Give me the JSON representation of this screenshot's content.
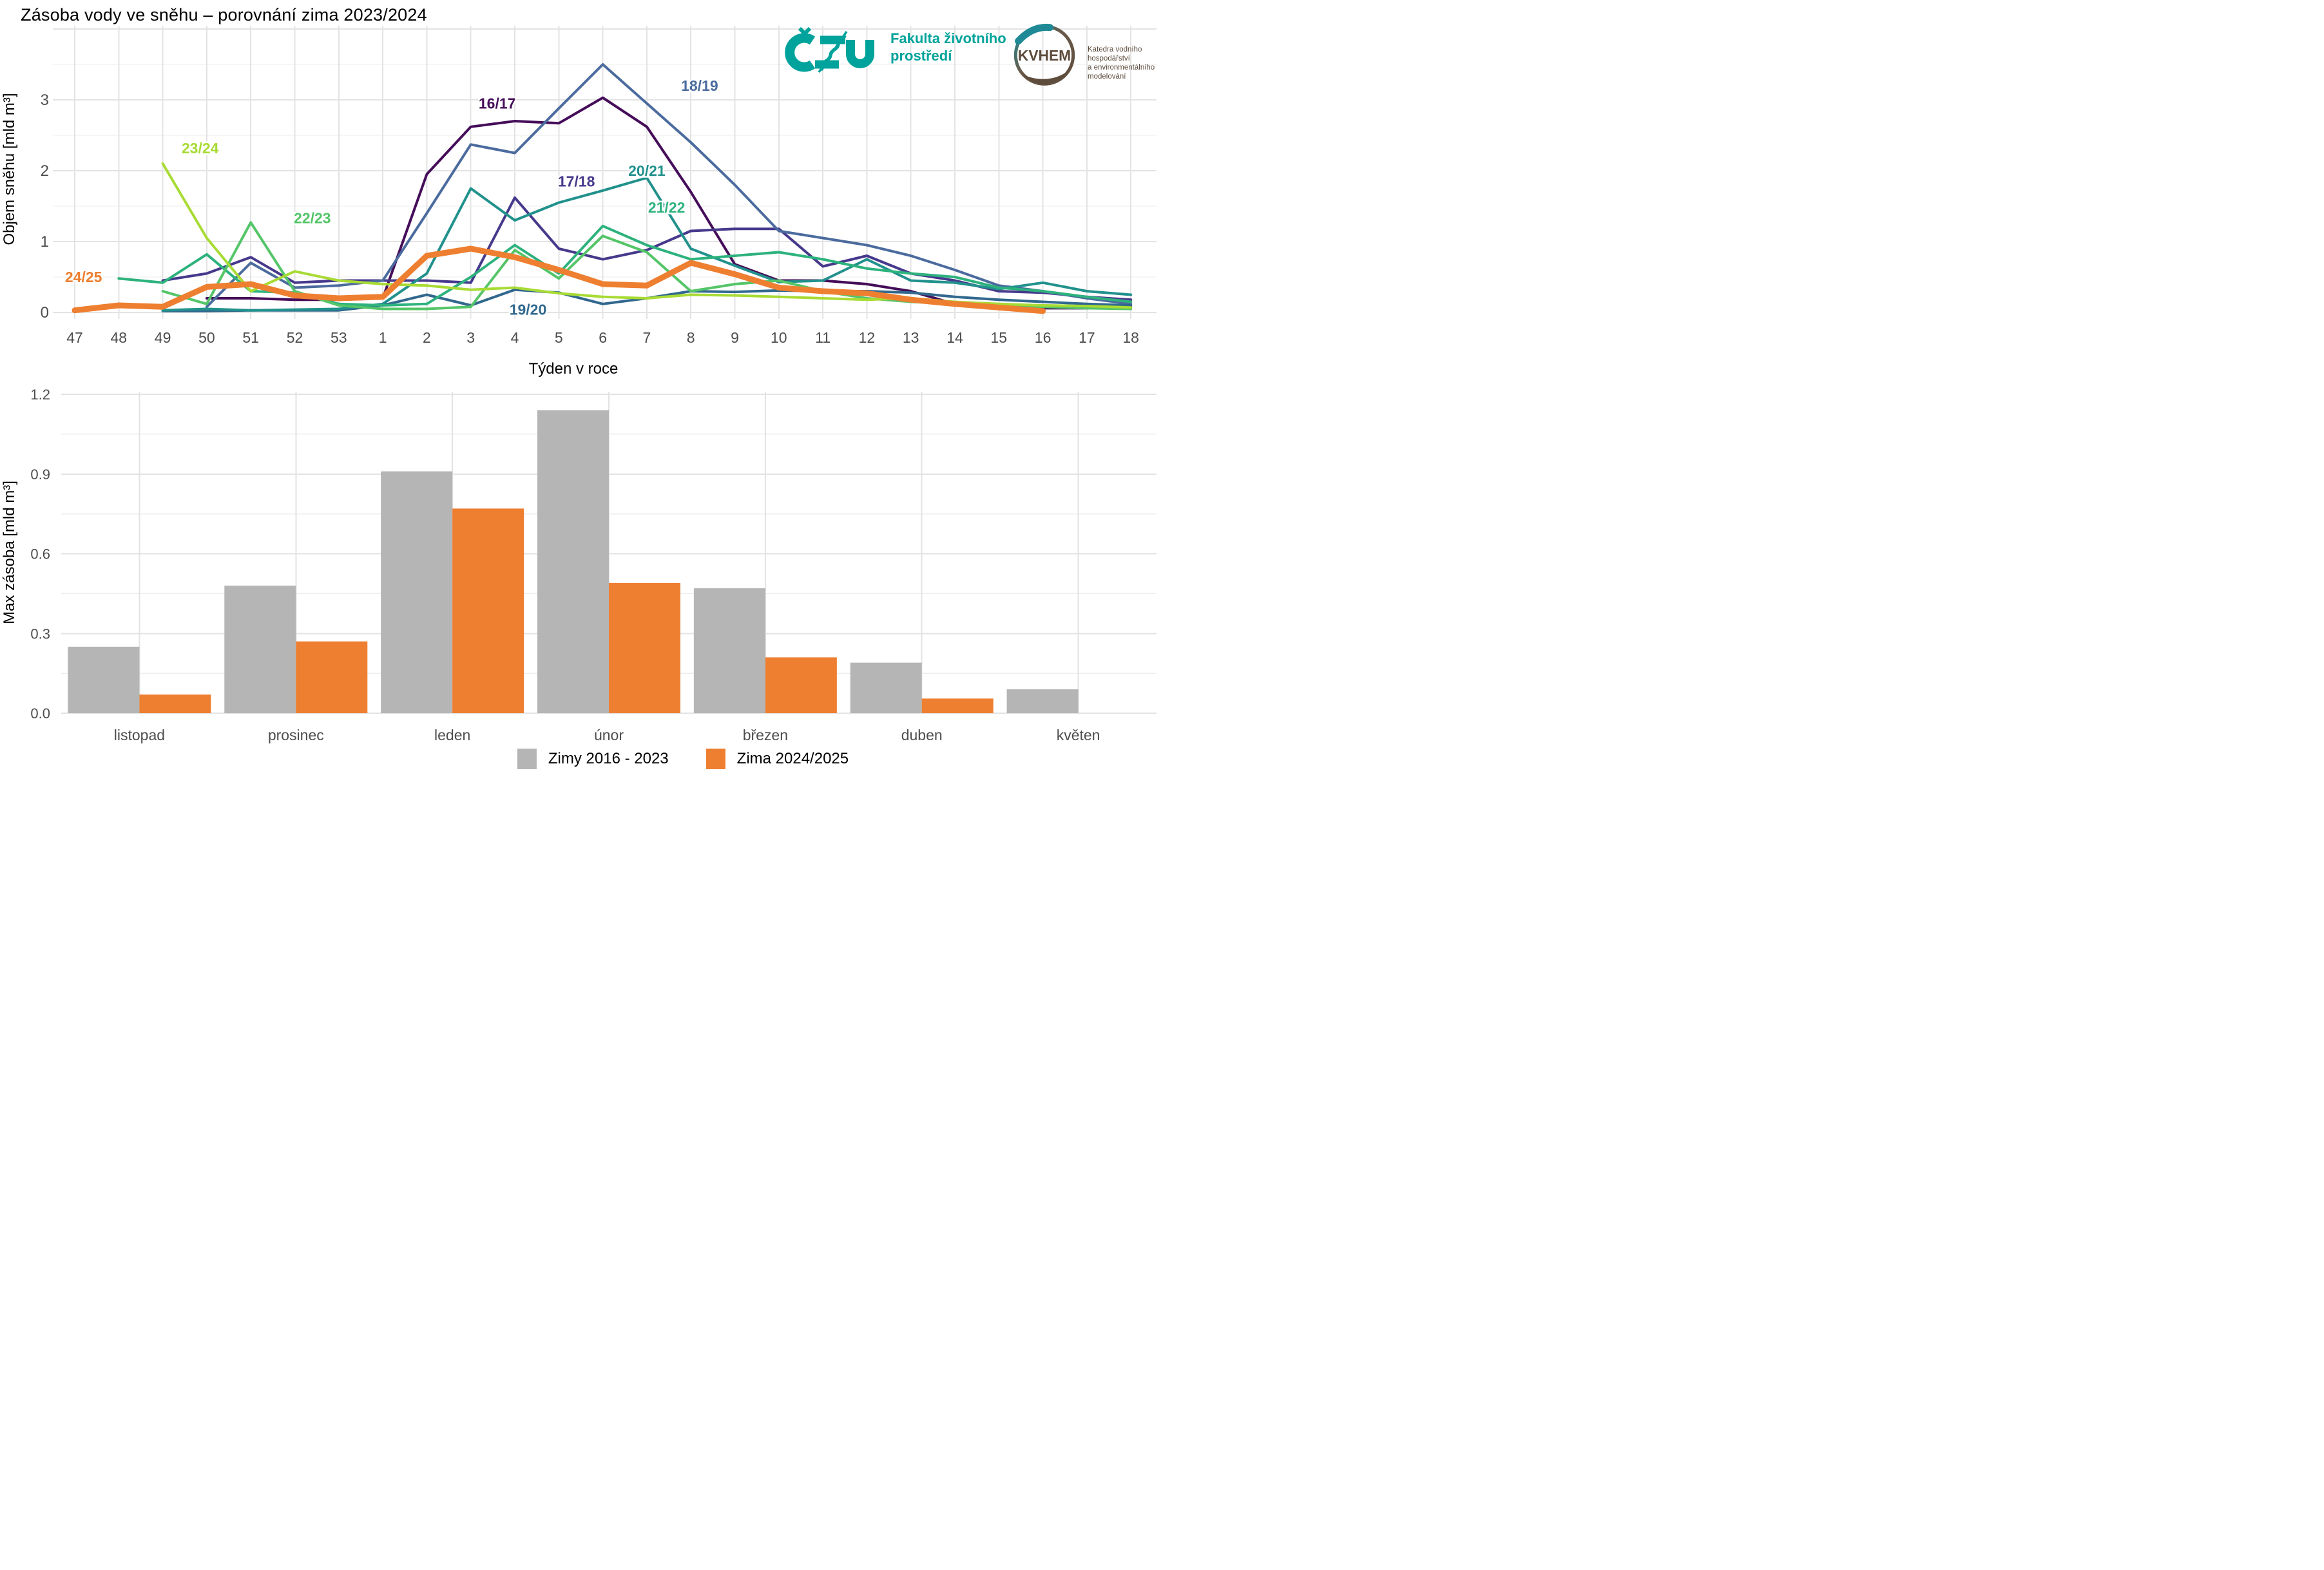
{
  "header": {
    "title": "Zásoba vody ve sněhu – porovnání zima 2023/2024",
    "czu": {
      "abbr": "ČZU",
      "faculty_line1": "Fakulta životního",
      "faculty_line2": "prostředí",
      "brand_color": "#00a39b"
    },
    "kvhem": {
      "abbr": "KVHEM",
      "caption_line1": "Katedra vodního hospodářství",
      "caption_line2": "a environmentálního modelování",
      "brand_color": "#5d4b3c"
    }
  },
  "chart_data": [
    {
      "type": "line",
      "title": "",
      "xlabel": "Týden v roce",
      "ylabel": "Objem sněhu [mld m³]",
      "x_tick_labels": [
        "47",
        "48",
        "49",
        "50",
        "51",
        "52",
        "53",
        "1",
        "2",
        "3",
        "4",
        "5",
        "6",
        "7",
        "8",
        "9",
        "10",
        "11",
        "12",
        "13",
        "14",
        "15",
        "16",
        "17",
        "18"
      ],
      "y_ticks": [
        0,
        1,
        2,
        3
      ],
      "ylim": [
        0,
        4.05
      ],
      "grid": "on",
      "legend_position": "labels-on-lines",
      "series": [
        {
          "name": "16/17",
          "color": "#450d59",
          "label_at": [
            9.6,
            2.95
          ],
          "values": [
            null,
            null,
            null,
            0.2,
            0.2,
            0.18,
            0.18,
            0.2,
            1.95,
            2.62,
            2.7,
            2.67,
            3.03,
            2.62,
            1.7,
            0.68,
            0.45,
            0.45,
            0.4,
            0.3,
            0.12,
            0.08,
            0.06,
            0.06,
            0.08
          ]
        },
        {
          "name": "17/18",
          "color": "#46398c",
          "label_at": [
            11.4,
            1.85
          ],
          "values": [
            null,
            null,
            0.45,
            0.55,
            0.78,
            0.42,
            0.45,
            0.45,
            0.45,
            0.42,
            1.62,
            0.9,
            0.75,
            0.88,
            1.15,
            1.18,
            1.18,
            0.65,
            0.8,
            0.55,
            0.45,
            0.3,
            0.28,
            0.22,
            0.18
          ]
        },
        {
          "name": "18/19",
          "color": "#4b6b9e",
          "label_at": [
            14.2,
            3.2
          ],
          "values": [
            null,
            null,
            null,
            0.08,
            0.7,
            0.35,
            0.38,
            0.45,
            1.4,
            2.37,
            2.25,
            2.88,
            3.5,
            2.95,
            2.4,
            1.8,
            1.15,
            1.05,
            0.95,
            0.8,
            0.6,
            0.38,
            0.3,
            0.2,
            0.12
          ]
        },
        {
          "name": "19/20",
          "color": "#31688e",
          "label_at": [
            10.3,
            0.04
          ],
          "values": [
            null,
            null,
            0.02,
            0.02,
            0.03,
            0.03,
            0.03,
            0.1,
            0.25,
            0.1,
            0.32,
            0.28,
            0.12,
            0.2,
            0.3,
            0.29,
            0.31,
            0.3,
            0.3,
            0.28,
            0.22,
            0.18,
            0.15,
            0.12,
            0.1
          ]
        },
        {
          "name": "20/21",
          "color": "#21918c",
          "label_at": [
            13.0,
            2.0
          ],
          "values": [
            null,
            null,
            0.03,
            0.05,
            0.03,
            0.04,
            0.05,
            0.12,
            0.55,
            1.75,
            1.3,
            1.55,
            1.72,
            1.9,
            0.9,
            0.66,
            0.43,
            0.45,
            0.75,
            0.45,
            0.42,
            0.33,
            0.42,
            0.3,
            0.25
          ]
        },
        {
          "name": "21/22",
          "color": "#2db27d",
          "label_at": [
            13.45,
            1.48
          ],
          "values": [
            null,
            0.48,
            0.42,
            0.82,
            0.3,
            0.28,
            0.12,
            0.1,
            0.12,
            0.5,
            0.95,
            0.55,
            1.22,
            0.95,
            0.75,
            0.8,
            0.85,
            0.75,
            0.62,
            0.55,
            0.5,
            0.35,
            0.3,
            0.22,
            0.15
          ]
        },
        {
          "name": "22/23",
          "color": "#54c568",
          "label_at": [
            5.4,
            1.33
          ],
          "values": [
            null,
            null,
            0.3,
            0.12,
            1.27,
            0.3,
            0.1,
            0.05,
            0.05,
            0.08,
            0.88,
            0.48,
            1.08,
            0.85,
            0.3,
            0.4,
            0.45,
            0.3,
            0.2,
            0.15,
            0.12,
            0.1,
            0.08,
            0.06,
            0.05
          ]
        },
        {
          "name": "23/24",
          "color": "#a8db34",
          "label_at": [
            2.85,
            2.32
          ],
          "values": [
            null,
            null,
            2.1,
            1.05,
            0.3,
            0.58,
            0.45,
            0.4,
            0.38,
            0.32,
            0.35,
            0.27,
            0.22,
            0.2,
            0.25,
            0.24,
            0.22,
            0.2,
            0.18,
            0.2,
            0.15,
            0.12,
            0.1,
            0.09,
            0.07
          ]
        },
        {
          "name": "24/25",
          "color": "#ee7f30",
          "wide": true,
          "label_at": [
            0.2,
            0.5
          ],
          "values": [
            0.03,
            0.1,
            0.08,
            0.36,
            0.4,
            0.24,
            0.2,
            0.22,
            0.8,
            0.9,
            0.78,
            0.6,
            0.4,
            0.38,
            0.7,
            0.54,
            0.35,
            0.3,
            0.27,
            0.18,
            0.12,
            0.07,
            0.02,
            null,
            null
          ]
        }
      ]
    },
    {
      "type": "bar",
      "title": "",
      "xlabel": "",
      "ylabel": "Max zásoba [mld m³]",
      "categories": [
        "listopad",
        "prosinec",
        "leden",
        "únor",
        "březen",
        "duben",
        "květen"
      ],
      "y_tick_labels": [
        "0.0",
        "0.3",
        "0.6",
        "0.9",
        "1.2"
      ],
      "y_ticks": [
        0,
        0.3,
        0.6,
        0.9,
        1.2
      ],
      "ylim": [
        0,
        1.23
      ],
      "grid": "on",
      "legend_position": "bottom-center",
      "series": [
        {
          "name": "Zimy 2016 - 2023",
          "color": "#b5b5b5",
          "values": [
            0.25,
            0.48,
            0.91,
            1.14,
            0.47,
            0.19,
            0.09
          ]
        },
        {
          "name": "Zima 2024/2025",
          "color": "#ee7f30",
          "values": [
            0.07,
            0.27,
            0.77,
            0.49,
            0.21,
            0.055,
            null
          ]
        }
      ]
    }
  ],
  "legend": {
    "items": [
      {
        "label": "Zimy 2016 - 2023",
        "color": "#b5b5b5"
      },
      {
        "label": "Zima 2024/2025",
        "color": "#ee7f30"
      }
    ]
  }
}
